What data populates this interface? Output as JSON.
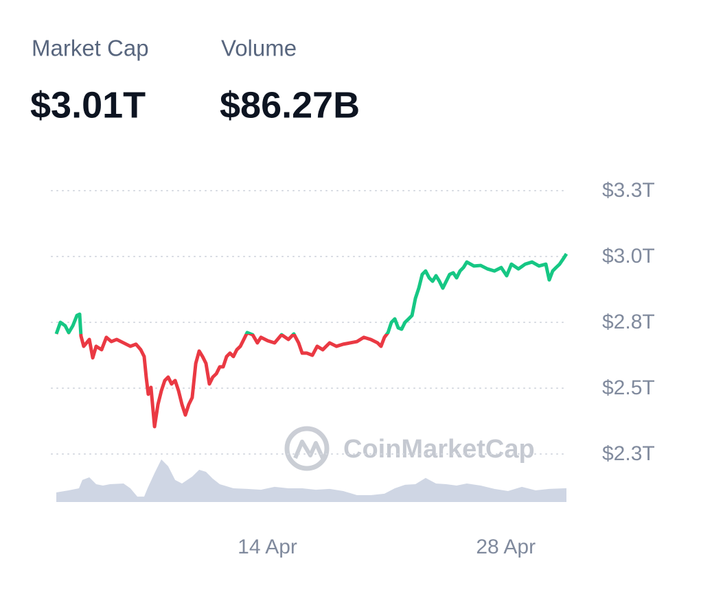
{
  "stats": [
    {
      "label": "Market Cap",
      "value": "$3.01T"
    },
    {
      "label": "Volume",
      "value": "$86.27B"
    }
  ],
  "chart_data": {
    "type": "line",
    "watermark": "CoinMarketCap",
    "xlim": [
      1.6,
      31.56
    ],
    "xticks": [
      {
        "value": 14,
        "label": "14 Apr"
      },
      {
        "value": 28,
        "label": "28 Apr"
      }
    ],
    "ylim": [
      2.25,
      3.25
    ],
    "yticks": [
      {
        "value": 3.25,
        "label": "$3.3T"
      },
      {
        "value": 3.0,
        "label": "$3.0T"
      },
      {
        "value": 2.75,
        "label": "$2.8T"
      },
      {
        "value": 2.5,
        "label": "$2.5T"
      },
      {
        "value": 2.25,
        "label": "$2.3T"
      }
    ],
    "y2lim": [
      0,
      430
    ],
    "grid": true,
    "series": [
      {
        "type": "line",
        "up_color": "#16c784",
        "down_color": "#ea3943",
        "x": [
          1.6,
          1.84,
          2.12,
          2.33,
          2.57,
          2.81,
          2.97,
          3.05,
          3.21,
          3.54,
          3.74,
          3.94,
          4.26,
          4.54,
          4.83,
          5.15,
          5.55,
          5.95,
          6.28,
          6.56,
          6.76,
          6.88,
          7.0,
          7.16,
          7.37,
          7.57,
          7.77,
          7.97,
          8.17,
          8.37,
          8.58,
          8.78,
          8.98,
          9.18,
          9.38,
          9.58,
          9.79,
          9.99,
          10.19,
          10.39,
          10.59,
          10.79,
          11.0,
          11.2,
          11.4,
          11.6,
          11.8,
          12.0,
          12.2,
          12.41,
          12.61,
          12.81,
          13.13,
          13.41,
          13.62,
          14.02,
          14.42,
          14.83,
          15.23,
          15.55,
          15.83,
          16.04,
          16.32,
          16.64,
          16.92,
          17.25,
          17.65,
          18.05,
          18.45,
          18.86,
          19.26,
          19.66,
          20.07,
          20.47,
          20.67,
          20.87,
          21.08,
          21.28,
          21.48,
          21.68,
          21.88,
          22.08,
          22.29,
          22.49,
          22.69,
          22.89,
          23.09,
          23.29,
          23.5,
          23.7,
          23.9,
          24.1,
          24.3,
          24.5,
          24.7,
          24.91,
          25.11,
          25.31,
          25.51,
          25.71,
          26.12,
          26.52,
          26.92,
          27.33,
          27.73,
          28.05,
          28.33,
          28.74,
          29.14,
          29.54,
          29.95,
          30.35,
          30.55,
          30.75,
          30.95,
          31.16,
          31.36,
          31.56
        ],
        "values": [
          2.706,
          2.75,
          2.737,
          2.711,
          2.737,
          2.776,
          2.781,
          2.698,
          2.659,
          2.685,
          2.615,
          2.659,
          2.646,
          2.693,
          2.677,
          2.685,
          2.672,
          2.659,
          2.667,
          2.646,
          2.62,
          2.542,
          2.477,
          2.503,
          2.354,
          2.438,
          2.49,
          2.529,
          2.542,
          2.516,
          2.529,
          2.49,
          2.438,
          2.398,
          2.438,
          2.464,
          2.594,
          2.641,
          2.62,
          2.594,
          2.516,
          2.542,
          2.555,
          2.581,
          2.581,
          2.62,
          2.633,
          2.62,
          2.646,
          2.659,
          2.685,
          2.711,
          2.703,
          2.672,
          2.693,
          2.68,
          2.672,
          2.703,
          2.685,
          2.706,
          2.672,
          2.633,
          2.633,
          2.625,
          2.659,
          2.646,
          2.672,
          2.659,
          2.667,
          2.672,
          2.677,
          2.693,
          2.685,
          2.672,
          2.659,
          2.693,
          2.711,
          2.75,
          2.763,
          2.729,
          2.724,
          2.75,
          2.763,
          2.776,
          2.841,
          2.88,
          2.932,
          2.945,
          2.919,
          2.906,
          2.927,
          2.906,
          2.88,
          2.906,
          2.932,
          2.938,
          2.919,
          2.945,
          2.958,
          2.979,
          2.964,
          2.966,
          2.953,
          2.945,
          2.958,
          2.927,
          2.971,
          2.953,
          2.971,
          2.979,
          2.964,
          2.971,
          2.911,
          2.945,
          2.958,
          2.971,
          2.99,
          3.01
        ]
      },
      {
        "type": "area",
        "axis": "y2",
        "color": "#cfd6e4",
        "x": [
          1.6,
          2.33,
          2.93,
          3.13,
          3.54,
          3.94,
          4.34,
          4.75,
          5.55,
          5.95,
          6.36,
          6.76,
          6.96,
          7.37,
          7.77,
          8.17,
          8.58,
          8.98,
          9.58,
          9.99,
          10.39,
          10.79,
          11.2,
          12.0,
          12.81,
          13.62,
          14.42,
          15.23,
          16.04,
          16.84,
          17.65,
          18.45,
          19.26,
          20.07,
          20.87,
          21.48,
          22.08,
          22.69,
          23.29,
          23.9,
          24.5,
          25.11,
          25.71,
          26.52,
          27.33,
          28.13,
          28.94,
          29.75,
          30.55,
          31.56
        ],
        "values": [
          60,
          73,
          86,
          138,
          155,
          112,
          103,
          112,
          116,
          86,
          34,
          34,
          86,
          181,
          267,
          224,
          138,
          116,
          159,
          202,
          189,
          146,
          112,
          86,
          82,
          77,
          95,
          86,
          86,
          77,
          82,
          69,
          43,
          43,
          52,
          86,
          108,
          112,
          151,
          116,
          112,
          103,
          116,
          103,
          82,
          69,
          95,
          73,
          82,
          86.27
        ]
      }
    ]
  }
}
